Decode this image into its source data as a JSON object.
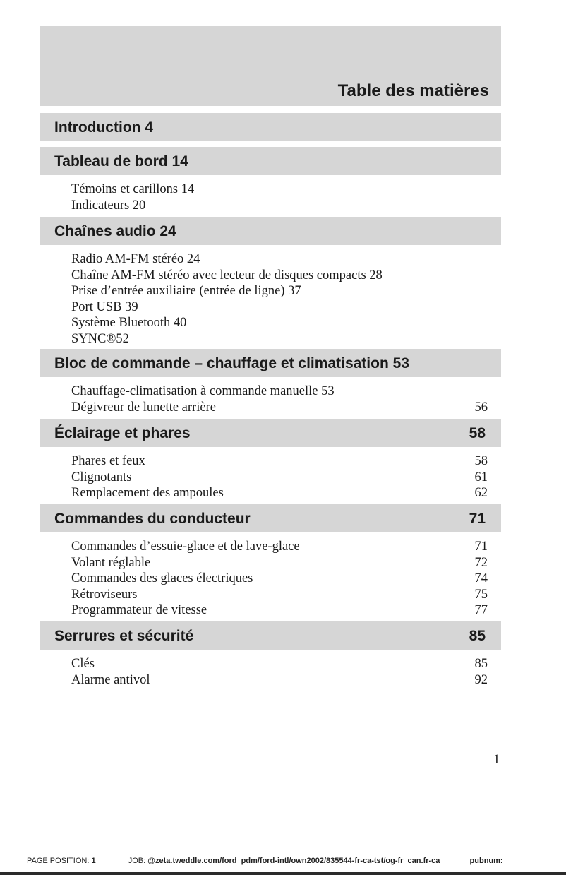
{
  "title": "Table des matières",
  "sections": [
    {
      "label": "Introduction 4",
      "page": "",
      "items": []
    },
    {
      "label": "Tableau de bord 14",
      "page": "",
      "items": [
        {
          "text": "Témoins et carillons 14",
          "page": ""
        },
        {
          "text": "Indicateurs 20",
          "page": ""
        }
      ]
    },
    {
      "label": "Chaînes audio 24",
      "page": "",
      "items": [
        {
          "text": "Radio AM-FM stéréo 24",
          "page": ""
        },
        {
          "text": "Chaîne AM-FM stéréo avec lecteur de disques compacts 28",
          "page": ""
        },
        {
          "text": "Prise d’entrée auxiliaire (entrée de ligne) 37",
          "page": ""
        },
        {
          "text": "Port USB 39",
          "page": ""
        },
        {
          "text": "Système Bluetooth 40",
          "page": ""
        },
        {
          "text": "SYNC®52",
          "page": ""
        }
      ]
    },
    {
      "label": "Bloc de commande – chauffage et climatisation 53",
      "page": "",
      "items": [
        {
          "text": "Chauffage-climatisation à commande manuelle 53",
          "page": ""
        },
        {
          "text": "Dégivreur de lunette arrière",
          "page": "56"
        }
      ]
    },
    {
      "label": "Éclairage et phares",
      "page": "58",
      "items": [
        {
          "text": "Phares et feux",
          "page": "58"
        },
        {
          "text": "Clignotants",
          "page": "61"
        },
        {
          "text": "Remplacement des ampoules",
          "page": "62"
        }
      ]
    },
    {
      "label": "Commandes du conducteur",
      "page": "71",
      "items": [
        {
          "text": "Commandes d’essuie-glace et de lave-glace",
          "page": "71"
        },
        {
          "text": "Volant réglable",
          "page": "72"
        },
        {
          "text": "Commandes des glaces électriques",
          "page": "74"
        },
        {
          "text": "Rétroviseurs",
          "page": "75"
        },
        {
          "text": "Programmateur de vitesse",
          "page": "77"
        }
      ]
    },
    {
      "label": "Serrures et sécurité",
      "page": "85",
      "items": [
        {
          "text": "Clés",
          "page": "85"
        },
        {
          "text": "Alarme antivol",
          "page": "92"
        }
      ]
    }
  ],
  "page_number": "1",
  "footer": {
    "position_label": "PAGE POSITION:",
    "position_value": "1",
    "job_label": "JOB:",
    "job_value": "@zeta.tweddle.com/ford_pdm/ford-intl/own2002/835544-fr-ca-tst/og-fr_can.fr-ca",
    "pubnum_label": "pubnum:"
  }
}
